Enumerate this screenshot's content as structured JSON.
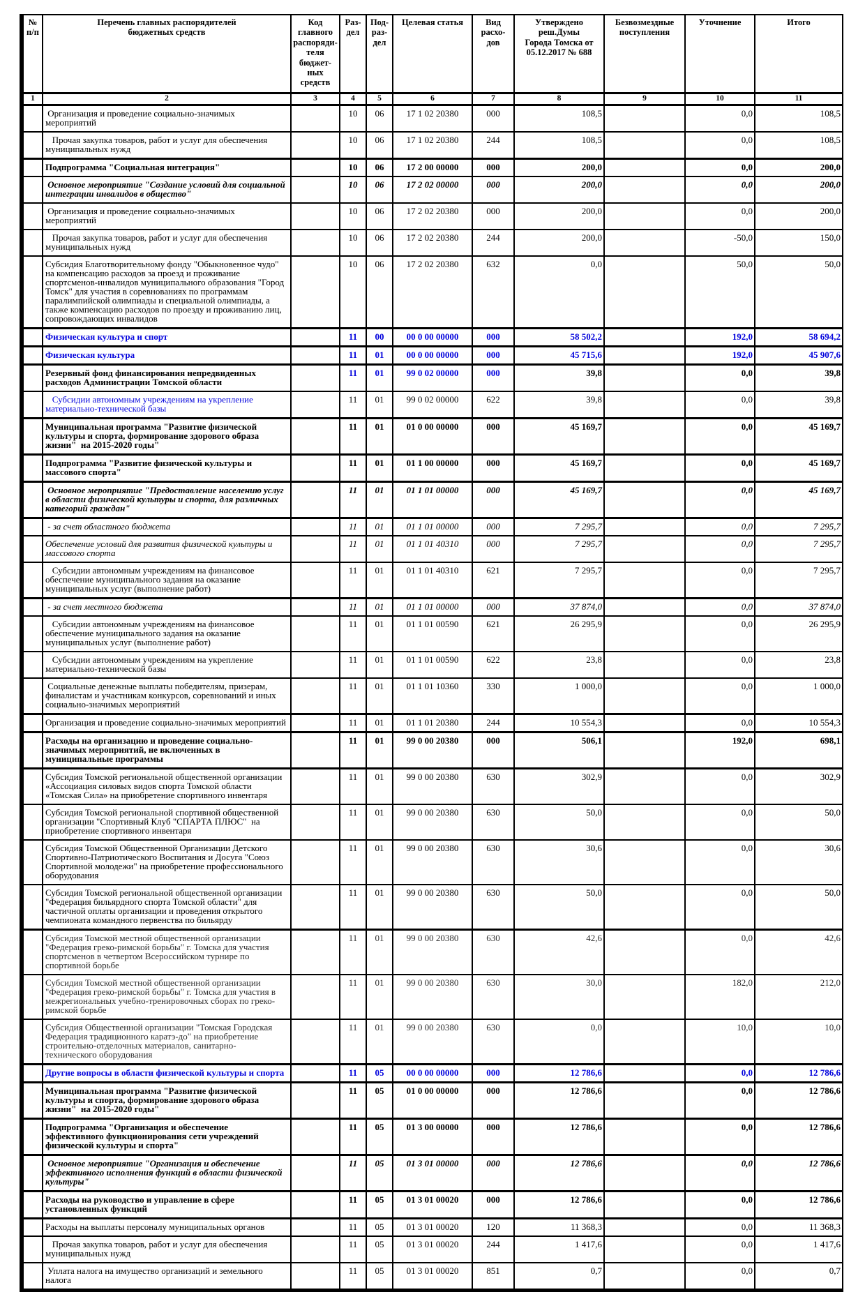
{
  "accent_color": "#0404dd",
  "table": {
    "columns": [
      {
        "num": "1",
        "label": "№\nп/п"
      },
      {
        "num": "2",
        "label": "Перечень главных распорядителей\nбюджетных средств"
      },
      {
        "num": "3",
        "label": "Код главного\nраспоряди-\nтеля бюджет-\nных средств"
      },
      {
        "num": "4",
        "label": "Раз-\nдел"
      },
      {
        "num": "5",
        "label": "Под-\nраз-\nдел"
      },
      {
        "num": "6",
        "label": "Целевая статья"
      },
      {
        "num": "7",
        "label": "Вид расхо-\nдов"
      },
      {
        "num": "8",
        "label": "Утверждено реш.Думы\nГорода Томска от\n05.12.2017 № 688"
      },
      {
        "num": "9",
        "label": "Безвозмездные\nпоступления"
      },
      {
        "num": "10",
        "label": "Уточнение"
      },
      {
        "num": "11",
        "label": "Итого"
      }
    ],
    "rows": [
      {
        "name": " Организация и проведение социально-значимых мероприятий",
        "rz": "10",
        "pr": "06",
        "cs": "17 1 02 20380",
        "vr": "000",
        "approved": "108,5",
        "grat": "",
        "adj": "0,0",
        "total": "108,5",
        "style": "r"
      },
      {
        "name": "   Прочая закупка товаров, работ и услуг для обеспечения муниципальных нужд",
        "rz": "10",
        "pr": "06",
        "cs": "17 1 02 20380",
        "vr": "244",
        "approved": "108,5",
        "grat": "",
        "adj": "0,0",
        "total": "108,5",
        "style": "r"
      },
      {
        "name": "Подпрограмма \"Социальная интеграция\"",
        "rz": "10",
        "pr": "06",
        "cs": "17 2 00 00000",
        "vr": "000",
        "approved": "200,0",
        "grat": "",
        "adj": "0,0",
        "total": "200,0",
        "style": "b",
        "thick": true
      },
      {
        "name": " Основное мероприятие \"Создание условий для социальной интеграции инвалидов в общество\"",
        "rz": "10",
        "pr": "06",
        "cs": "17 2 02 00000",
        "vr": "000",
        "approved": "200,0",
        "grat": "",
        "adj": "0,0",
        "total": "200,0",
        "style": "bi"
      },
      {
        "name": " Организация и проведение социально-значимых мероприятий",
        "rz": "10",
        "pr": "06",
        "cs": "17 2 02 20380",
        "vr": "000",
        "approved": "200,0",
        "grat": "",
        "adj": "0,0",
        "total": "200,0",
        "style": "r"
      },
      {
        "name": "   Прочая закупка товаров, работ и услуг для обеспечения муниципальных нужд",
        "rz": "10",
        "pr": "06",
        "cs": "17 2 02 20380",
        "vr": "244",
        "approved": "200,0",
        "grat": "",
        "adj": "-50,0",
        "total": "150,0",
        "style": "r"
      },
      {
        "name": "Субсидия Благотворительному фонду \"Обыкновенное чудо\" на компенсацию расходов за проезд и проживание спортсменов-инвалидов муниципального образования \"Город Томск\" для участия в соревнованиях по программам паралимпийской олимпиады и специальной олимпиады, а также компенсацию расходов по проезду и проживанию лиц, сопровождающих инвалидов",
        "rz": "10",
        "pr": "06",
        "cs": "17 2 02 20380",
        "vr": "632",
        "approved": "0,0",
        "grat": "",
        "adj": "50,0",
        "total": "50,0",
        "style": "r"
      },
      {
        "name": "Физическая культура и спорт",
        "rz": "11",
        "pr": "00",
        "cs": "00 0 00 00000",
        "vr": "000",
        "approved": "58 502,2",
        "grat": "",
        "adj": "192,0",
        "total": "58 694,2",
        "style": "blueb",
        "thick": true
      },
      {
        "name": "Физическая культура",
        "rz": "11",
        "pr": "01",
        "cs": "00 0 00 00000",
        "vr": "000",
        "approved": "45 715,6",
        "grat": "",
        "adj": "192,0",
        "total": "45 907,6",
        "style": "blueb",
        "thick": true
      },
      {
        "name": "Резервный фонд финансирования непредвиденных расходов Администрации Томской области",
        "rz": "11",
        "pr": "01",
        "cs": "99 0 02 00000",
        "vr": "000",
        "approved": "39,8",
        "grat": "",
        "adj": "0,0",
        "total": "39,8",
        "style": "b",
        "codes_blue": true,
        "thick": true
      },
      {
        "name": "   Субсидии автономным учреждениям на укрепление материально-технической базы",
        "rz": "11",
        "pr": "01",
        "cs": "99 0 02 00000",
        "vr": "622",
        "approved": "39,8",
        "grat": "",
        "adj": "0,0",
        "total": "39,8",
        "style": "r",
        "name_blue": true
      },
      {
        "name": "Муниципальная программа \"Развитие физической культуры и спорта, формирование здорового образа жизни\"  на 2015-2020 годы\"",
        "rz": "11",
        "pr": "01",
        "cs": "01 0 00 00000",
        "vr": "000",
        "approved": "45 169,7",
        "grat": "",
        "adj": "0,0",
        "total": "45 169,7",
        "style": "b",
        "thick": true
      },
      {
        "name": "Подпрограмма \"Развитие физической культуры и массового спорта\"",
        "rz": "11",
        "pr": "01",
        "cs": "01 1 00 00000",
        "vr": "000",
        "approved": "45 169,7",
        "grat": "",
        "adj": "0,0",
        "total": "45 169,7",
        "style": "b",
        "thick": true
      },
      {
        "name": " Основное мероприятие \"Предоставление населению услуг в области физической культуры и спорта, для различных категорий граждан\"",
        "rz": "11",
        "pr": "01",
        "cs": "01 1 01 00000",
        "vr": "000",
        "approved": "45 169,7",
        "grat": "",
        "adj": "0,0",
        "total": "45 169,7",
        "style": "bi",
        "thick": true
      },
      {
        "name": " - за счет областного бюджета",
        "rz": "11",
        "pr": "01",
        "cs": "01 1 01 00000",
        "vr": "000",
        "approved": "7 295,7",
        "grat": "",
        "adj": "0,0",
        "total": "7 295,7",
        "style": "i",
        "thick": true
      },
      {
        "name": "Обеспечение условий для развития физической культуры и массового спорта",
        "rz": "11",
        "pr": "01",
        "cs": "01 1 01 40310",
        "vr": "000",
        "approved": "7 295,7",
        "grat": "",
        "adj": "0,0",
        "total": "7 295,7",
        "style": "i"
      },
      {
        "name": "   Субсидии автономным учреждениям на финансовое обеспечение муниципального задания на оказание муниципальных услуг (выполнение работ)",
        "rz": "11",
        "pr": "01",
        "cs": "01 1 01 40310",
        "vr": "621",
        "approved": "7 295,7",
        "grat": "",
        "adj": "0,0",
        "total": "7 295,7",
        "style": "r"
      },
      {
        "name": " - за счет местного бюджета",
        "rz": "11",
        "pr": "01",
        "cs": "01 1 01 00000",
        "vr": "000",
        "approved": "37 874,0",
        "grat": "",
        "adj": "0,0",
        "total": "37 874,0",
        "style": "i",
        "thick": true
      },
      {
        "name": "   Субсидии автономным учреждениям на финансовое обеспечение муниципального задания на оказание муниципальных услуг (выполнение работ)",
        "rz": "11",
        "pr": "01",
        "cs": "01 1 01 00590",
        "vr": "621",
        "approved": "26 295,9",
        "grat": "",
        "adj": "0,0",
        "total": "26 295,9",
        "style": "r"
      },
      {
        "name": "   Субсидии автономным учреждениям на укрепление материально-технической базы",
        "rz": "11",
        "pr": "01",
        "cs": "01 1 01 00590",
        "vr": "622",
        "approved": "23,8",
        "grat": "",
        "adj": "0,0",
        "total": "23,8",
        "style": "r"
      },
      {
        "name": " Социальные денежные выплаты победителям, призерам, финалистам и участникам конкурсов, соревнований и иных социально-значимых мероприятий",
        "rz": "11",
        "pr": "01",
        "cs": "01 1 01 10360",
        "vr": "330",
        "approved": "1 000,0",
        "grat": "",
        "adj": "0,0",
        "total": "1 000,0",
        "style": "r"
      },
      {
        "name": "Организация и проведение социально-значимых мероприятий",
        "rz": "11",
        "pr": "01",
        "cs": "01 1 01 20380",
        "vr": "244",
        "approved": "10 554,3",
        "grat": "",
        "adj": "0,0",
        "total": "10 554,3",
        "style": "r",
        "thick": true
      },
      {
        "name": "Расходы на организацию и проведение социально-значимых мероприятий, не включенных в муниципальные программы",
        "rz": "11",
        "pr": "01",
        "cs": "99 0 00 20380",
        "vr": "000",
        "approved": "506,1",
        "grat": "",
        "adj": "192,0",
        "total": "698,1",
        "style": "b",
        "thick": true
      },
      {
        "name": "Субсидия Томской региональной общественной организации «Ассоциация силовых видов спорта Томской области «Томская Сила» на приобретение спортивного инвентаря",
        "rz": "11",
        "pr": "01",
        "cs": "99 0 00 20380",
        "vr": "630",
        "approved": "302,9",
        "grat": "",
        "adj": "0,0",
        "total": "302,9",
        "style": "r",
        "thick": true
      },
      {
        "name": "Субсидия Томской региональной спортивной общественной организации \"Спортивный Клуб \"СПАРТА ПЛЮС\"  на приобретение спортивного инвентаря",
        "rz": "11",
        "pr": "01",
        "cs": "99 0 00 20380",
        "vr": "630",
        "approved": "50,0",
        "grat": "",
        "adj": "0,0",
        "total": "50,0",
        "style": "r"
      },
      {
        "name": "Субсидия Томской Общественной Организации Детского Спортивно-Патриотического Воспитания и Досуга \"Союз Спортивной молодежи\" на приобретение профессионального оборудования",
        "rz": "11",
        "pr": "01",
        "cs": "99 0 00 20380",
        "vr": "630",
        "approved": "30,6",
        "grat": "",
        "adj": "0,0",
        "total": "30,6",
        "style": "r"
      },
      {
        "name": "Субсидия Томской региональной общественной организации \"Федерация бильярдного спорта Томской области\" для частичной оплаты организации и проведения открытого чемпионата командного первенства по бильярду",
        "rz": "11",
        "pr": "01",
        "cs": "99 0 00 20380",
        "vr": "630",
        "approved": "50,0",
        "grat": "",
        "adj": "0,0",
        "total": "50,0",
        "style": "r"
      },
      {
        "name": "Субсидия Томской местной общественной организации \"Федерация греко-римской борьбы\" г. Томска для участия спортсменов в четвертом Всероссийском турнире по спортивной борьбе",
        "rz": "11",
        "pr": "01",
        "cs": "99 0 00 20380",
        "vr": "630",
        "approved": "42,6",
        "grat": "",
        "adj": "0,0",
        "total": "42,6",
        "style": "light",
        "thick": true
      },
      {
        "name": "Субсидия Томской местной общественной организации \"Федерация греко-римской борьбы\" г. Томска для участия в межрегиональных учебно-тренировочных сборах по греко-римской борьбе",
        "rz": "11",
        "pr": "01",
        "cs": "99 0 00 20380",
        "vr": "630",
        "approved": "30,0",
        "grat": "",
        "adj": "182,0",
        "total": "212,0",
        "style": "light"
      },
      {
        "name": "Субсидия Общественной организации \"Томская Городская Федерация традиционного каратэ-до\" на приобретение строительно-отделочных материалов, санитарно-технического оборудования",
        "rz": "11",
        "pr": "01",
        "cs": "99 0 00 20380",
        "vr": "630",
        "approved": "0,0",
        "grat": "",
        "adj": "10,0",
        "total": "10,0",
        "style": "light"
      },
      {
        "name": "Другие вопросы в области физической культуры и спорта",
        "rz": "11",
        "pr": "05",
        "cs": "00 0 00 00000",
        "vr": "000",
        "approved": "12 786,6",
        "grat": "",
        "adj": "0,0",
        "total": "12 786,6",
        "style": "blueb",
        "thick": true
      },
      {
        "name": "Муниципальная программа \"Развитие физической культуры и спорта, формирование здорового образа жизни\"  на 2015-2020 годы\"",
        "rz": "11",
        "pr": "05",
        "cs": "01 0 00 00000",
        "vr": "000",
        "approved": "12 786,6",
        "grat": "",
        "adj": "0,0",
        "total": "12 786,6",
        "style": "b",
        "thick": true
      },
      {
        "name": "Подпрограмма \"Организация и обеспечение эффективного функционирования сети учреждений физической культуры и спорта\"",
        "rz": "11",
        "pr": "05",
        "cs": "01 3 00 00000",
        "vr": "000",
        "approved": "12 786,6",
        "grat": "",
        "adj": "0,0",
        "total": "12 786,6",
        "style": "b",
        "thick": true
      },
      {
        "name": " Основное мероприятие \"Организация и обеспечение эффективного исполнения функций в области физической культуры\"",
        "rz": "11",
        "pr": "05",
        "cs": "01 3 01 00000",
        "vr": "000",
        "approved": "12 786,6",
        "grat": "",
        "adj": "0,0",
        "total": "12 786,6",
        "style": "bi",
        "thick": true
      },
      {
        "name": "Расходы на руководство и управление в сфере установленных функций",
        "rz": "11",
        "pr": "05",
        "cs": "01 3 01 00020",
        "vr": "000",
        "approved": "12 786,6",
        "grat": "",
        "adj": "0,0",
        "total": "12 786,6",
        "style": "b",
        "thick": true
      },
      {
        "name": "Расходы на выплаты персоналу муниципальных органов",
        "rz": "11",
        "pr": "05",
        "cs": "01 3 01 00020",
        "vr": "120",
        "approved": "11 368,3",
        "grat": "",
        "adj": "0,0",
        "total": "11 368,3",
        "style": "r",
        "thick": true
      },
      {
        "name": "   Прочая закупка товаров, работ и услуг для обеспечения муниципальных нужд",
        "rz": "11",
        "pr": "05",
        "cs": "01 3 01 00020",
        "vr": "244",
        "approved": "1 417,6",
        "grat": "",
        "adj": "0,0",
        "total": "1 417,6",
        "style": "r"
      },
      {
        "name": " Уплата налога на имущество организаций и земельного налога",
        "rz": "11",
        "pr": "05",
        "cs": "01 3 01 00020",
        "vr": "851",
        "approved": "0,7",
        "grat": "",
        "adj": "0,0",
        "total": "0,7",
        "style": "r"
      }
    ]
  }
}
